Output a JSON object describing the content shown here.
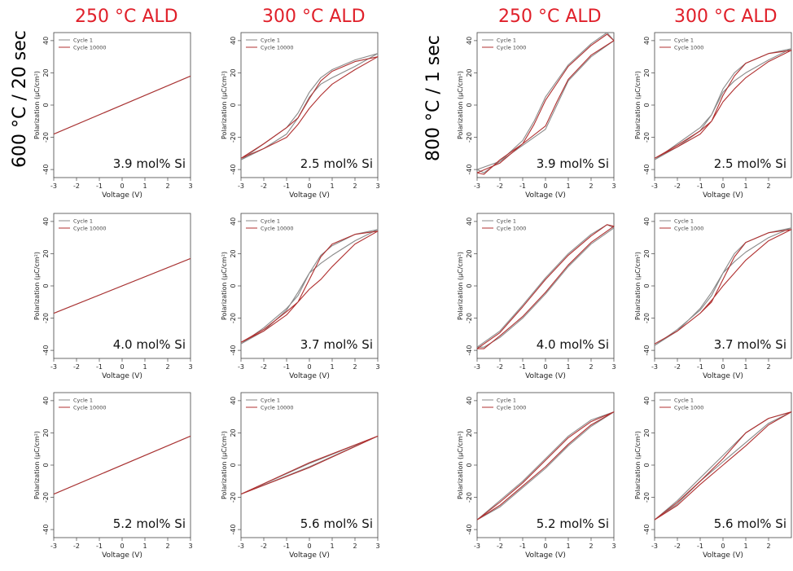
{
  "headers": {
    "left_250": "250 °C ALD",
    "left_300": "300 °C ALD",
    "right_250": "250 °C ALD",
    "right_300": "300 °C ALD",
    "row_left": "600 °C / 20 sec",
    "row_right": "800 °C / 1 sec"
  },
  "colors": {
    "header": "#e0202a",
    "cycle1": "#8a8a8a",
    "cycleN": "#b03030"
  },
  "chart_data": [
    {
      "type": "line",
      "panel": "600C-250ALD-row1",
      "annotation": "3.9 mol% Si",
      "xlabel": "Voltage (V)",
      "ylabel": "Polarization (μC/cm²)",
      "legend": [
        "Cycle 1",
        "Cycle 10000"
      ],
      "xlim": [
        -3,
        3
      ],
      "ylim": [
        -45,
        45
      ],
      "xticks": [
        -3,
        -2,
        -1,
        0,
        1,
        2,
        3
      ],
      "yticks": [
        -40,
        -20,
        0,
        20,
        40
      ],
      "series": [
        {
          "name": "Cycle 1",
          "x": [
            -3,
            3
          ],
          "y": [
            -18,
            18
          ]
        },
        {
          "name": "Cycle 10000",
          "x": [
            -3,
            3
          ],
          "y": [
            -18,
            18
          ]
        }
      ]
    },
    {
      "type": "line",
      "panel": "600C-300ALD-row1",
      "annotation": "2.5 mol% Si",
      "xlabel": "Voltage (V)",
      "ylabel": "Polarization (μC/cm²)",
      "legend": [
        "Cycle 1",
        "Cycle 10000"
      ],
      "xlim": [
        -3,
        3
      ],
      "ylim": [
        -45,
        45
      ],
      "xticks": [
        -3,
        -2,
        -1,
        0,
        1,
        2,
        3
      ],
      "yticks": [
        -40,
        -20,
        0,
        20,
        40
      ],
      "series": [
        {
          "name": "Cycle 1",
          "x": [
            -3,
            -2,
            -1,
            -0.5,
            0,
            0.5,
            1,
            2,
            3,
            2,
            1,
            0.5,
            0,
            -0.5,
            -1,
            -2,
            -3
          ],
          "y": [
            -34,
            -27,
            -18,
            -8,
            5,
            13,
            17,
            24,
            32,
            28,
            22,
            17,
            8,
            -5,
            -14,
            -24,
            -34
          ]
        },
        {
          "name": "Cycle 10000",
          "x": [
            -3,
            -2,
            -1,
            -0.5,
            0,
            0.5,
            1,
            2,
            3,
            2,
            1,
            0.5,
            0,
            -0.5,
            -1,
            -2,
            -3
          ],
          "y": [
            -33,
            -27,
            -20,
            -12,
            -2,
            6,
            13,
            22,
            30,
            27,
            21,
            15,
            4,
            -8,
            -14,
            -24,
            -33
          ]
        }
      ]
    },
    {
      "type": "line",
      "panel": "800C-250ALD-row1",
      "annotation": "3.9 mol% Si",
      "xlabel": "Voltage (V)",
      "ylabel": "Polarization (μC/cm²)",
      "legend": [
        "Cycle 1",
        "Cycle 1000"
      ],
      "xlim": [
        -3,
        3
      ],
      "ylim": [
        -45,
        45
      ],
      "xticks": [
        -3,
        -2,
        -1,
        0,
        1,
        2,
        3
      ],
      "yticks": [
        -40,
        -20,
        0,
        20,
        40
      ],
      "series": [
        {
          "name": "Cycle 1",
          "x": [
            -3,
            -2,
            -1,
            -0.5,
            0,
            1,
            2,
            2.7,
            3,
            2,
            1,
            0.5,
            0,
            -1,
            -2,
            -2.7,
            -3
          ],
          "y": [
            -40,
            -35,
            -22,
            -10,
            5,
            25,
            38,
            45,
            40,
            30,
            15,
            0,
            -15,
            -25,
            -35,
            -42,
            -40
          ]
        },
        {
          "name": "Cycle 1000",
          "x": [
            -3,
            -2,
            -1,
            -0.5,
            0,
            1,
            2,
            2.7,
            3,
            2,
            1,
            0.5,
            0,
            -1,
            -2,
            -2.7,
            -3
          ],
          "y": [
            -42,
            -36,
            -24,
            -12,
            3,
            24,
            37,
            44,
            40,
            31,
            16,
            2,
            -13,
            -24,
            -34,
            -43,
            -42
          ]
        }
      ]
    },
    {
      "type": "line",
      "panel": "800C-300ALD-row1",
      "annotation": "2.5 mol% Si",
      "xlabel": "Voltage (V)",
      "ylabel": "Polarization (μC/cm²)",
      "legend": [
        "Cycle 1",
        "Cycle 1000"
      ],
      "xlim": [
        -3,
        3
      ],
      "ylim": [
        -45,
        45
      ],
      "xticks": [
        -3,
        -2,
        -1,
        0,
        1,
        2
      ],
      "yticks": [
        -40,
        -20,
        0,
        20,
        40
      ],
      "series": [
        {
          "name": "Cycle 1",
          "x": [
            -3,
            -2,
            -1,
            -0.5,
            0,
            0.5,
            1,
            2,
            3,
            2,
            1,
            0.5,
            0,
            -0.5,
            -1,
            -2,
            -3
          ],
          "y": [
            -34,
            -26,
            -16,
            -6,
            8,
            15,
            20,
            28,
            35,
            32,
            26,
            20,
            10,
            -6,
            -14,
            -24,
            -34
          ]
        },
        {
          "name": "Cycle 1000",
          "x": [
            -3,
            -2,
            -1,
            -0.5,
            0,
            0.5,
            1,
            2,
            3,
            2,
            1,
            0.5,
            0,
            -0.5,
            -1,
            -2,
            -3
          ],
          "y": [
            -33,
            -26,
            -18,
            -10,
            2,
            10,
            17,
            27,
            34,
            32,
            26,
            18,
            6,
            -10,
            -16,
            -25,
            -33
          ]
        }
      ]
    },
    {
      "type": "line",
      "panel": "600C-250ALD-row2",
      "annotation": "4.0 mol% Si",
      "xlabel": "Voltage (V)",
      "ylabel": "Polarization (μC/cm²)",
      "legend": [
        "Cycle 1",
        "Cycle 10000"
      ],
      "xlim": [
        -3,
        3
      ],
      "ylim": [
        -45,
        45
      ],
      "xticks": [
        -3,
        -2,
        -1,
        0,
        1,
        2,
        3
      ],
      "yticks": [
        -40,
        -20,
        0,
        20,
        40
      ],
      "series": [
        {
          "name": "Cycle 1",
          "x": [
            -3,
            3
          ],
          "y": [
            -17,
            17
          ]
        },
        {
          "name": "Cycle 10000",
          "x": [
            -3,
            3
          ],
          "y": [
            -17,
            17
          ]
        }
      ]
    },
    {
      "type": "line",
      "panel": "600C-300ALD-row2",
      "annotation": "3.7 mol% Si",
      "xlabel": "Voltage (V)",
      "ylabel": "Polarization (μC/cm²)",
      "legend": [
        "Cycle 1",
        "Cycle 10000"
      ],
      "xlim": [
        -3,
        3
      ],
      "ylim": [
        -45,
        45
      ],
      "xticks": [
        -3,
        -2,
        -1,
        0,
        1,
        2,
        3
      ],
      "yticks": [
        -40,
        -20,
        0,
        20,
        40
      ],
      "series": [
        {
          "name": "Cycle 1",
          "x": [
            -3,
            -2,
            -1,
            -0.5,
            0,
            0.5,
            1,
            2,
            3,
            2,
            1,
            0.5,
            0,
            -0.5,
            -1,
            -2,
            -3
          ],
          "y": [
            -36,
            -28,
            -15,
            -4,
            8,
            14,
            19,
            28,
            35,
            32,
            25,
            19,
            8,
            -6,
            -14,
            -26,
            -36
          ]
        },
        {
          "name": "Cycle 10000",
          "x": [
            -3,
            -2,
            -1,
            -0.5,
            0,
            0.5,
            1,
            2,
            3,
            2,
            1,
            0.5,
            0,
            -0.5,
            -1,
            -2,
            -3
          ],
          "y": [
            -35,
            -28,
            -18,
            -10,
            -2,
            4,
            12,
            26,
            34,
            32,
            26,
            18,
            4,
            -10,
            -16,
            -27,
            -35
          ]
        }
      ]
    },
    {
      "type": "line",
      "panel": "800C-250ALD-row2",
      "annotation": "4.0 mol% Si",
      "xlabel": "Voltage (V)",
      "ylabel": "Polarization (μC/cm²)",
      "legend": [
        "Cycle 1",
        "Cycle 1000"
      ],
      "xlim": [
        -3,
        3
      ],
      "ylim": [
        -45,
        45
      ],
      "xticks": [
        -3,
        -2,
        -1,
        0,
        1,
        2,
        3
      ],
      "yticks": [
        -40,
        -20,
        0,
        20,
        40
      ],
      "series": [
        {
          "name": "Cycle 1",
          "x": [
            -3,
            -2,
            -1,
            0,
            1,
            2,
            2.7,
            3,
            2,
            1,
            0,
            -1,
            -2,
            -2.7,
            -3
          ],
          "y": [
            -38,
            -28,
            -12,
            5,
            20,
            32,
            38,
            36,
            26,
            12,
            -5,
            -20,
            -32,
            -38,
            -38
          ]
        },
        {
          "name": "Cycle 1000",
          "x": [
            -3,
            -2,
            -1,
            0,
            1,
            2,
            2.7,
            3,
            2,
            1,
            0,
            -1,
            -2,
            -2.7,
            -3
          ],
          "y": [
            -39,
            -29,
            -13,
            4,
            19,
            31,
            38,
            37,
            27,
            13,
            -4,
            -19,
            -31,
            -39,
            -39
          ]
        }
      ]
    },
    {
      "type": "line",
      "panel": "800C-300ALD-row2",
      "annotation": "3.7 mol% Si",
      "xlabel": "Voltage (V)",
      "ylabel": "Polarization (μC/cm²)",
      "legend": [
        "Cycle 1",
        "Cycle 1000"
      ],
      "xlim": [
        -3,
        3
      ],
      "ylim": [
        -45,
        45
      ],
      "xticks": [
        -3,
        -2,
        -1,
        0,
        1,
        2
      ],
      "yticks": [
        -40,
        -20,
        0,
        20,
        40
      ],
      "series": [
        {
          "name": "Cycle 1",
          "x": [
            -3,
            -2,
            -1,
            -0.5,
            0,
            0.5,
            1,
            2,
            3,
            2,
            1,
            0.5,
            0,
            -0.5,
            -1,
            -2,
            -3
          ],
          "y": [
            -37,
            -28,
            -14,
            -4,
            8,
            15,
            21,
            30,
            36,
            33,
            27,
            20,
            8,
            -6,
            -15,
            -27,
            -37
          ]
        },
        {
          "name": "Cycle 1000",
          "x": [
            -3,
            -2,
            -1,
            -0.5,
            0,
            0.5,
            1,
            2,
            3,
            2,
            1,
            0.5,
            0,
            -0.5,
            -1,
            -2,
            -3
          ],
          "y": [
            -36,
            -28,
            -17,
            -9,
            0,
            8,
            16,
            28,
            35,
            33,
            27,
            18,
            4,
            -10,
            -17,
            -28,
            -36
          ]
        }
      ]
    },
    {
      "type": "line",
      "panel": "600C-250ALD-row3",
      "annotation": "5.2 mol% Si",
      "xlabel": "Voltage (V)",
      "ylabel": "Polarization (μC/cm²)",
      "legend": [
        "Cycle 1",
        "Cycle 10000"
      ],
      "xlim": [
        -3,
        3
      ],
      "ylim": [
        -45,
        45
      ],
      "xticks": [
        -3,
        -2,
        -1,
        0,
        1,
        2,
        3
      ],
      "yticks": [
        -40,
        -20,
        0,
        20,
        40
      ],
      "series": [
        {
          "name": "Cycle 1",
          "x": [
            -3,
            3
          ],
          "y": [
            -18,
            18
          ]
        },
        {
          "name": "Cycle 10000",
          "x": [
            -3,
            3
          ],
          "y": [
            -18,
            18
          ]
        }
      ]
    },
    {
      "type": "line",
      "panel": "600C-300ALD-row3",
      "annotation": "5.6 mol% Si",
      "xlabel": "Voltage (V)",
      "ylabel": "Polarization (μC/cm²)",
      "legend": [
        "Cycle 1",
        "Cycle 10000"
      ],
      "xlim": [
        -3,
        3
      ],
      "ylim": [
        -45,
        45
      ],
      "xticks": [
        -3,
        -2,
        -1,
        0,
        1,
        2,
        3
      ],
      "yticks": [
        -40,
        -20,
        0,
        20,
        40
      ],
      "series": [
        {
          "name": "Cycle 1",
          "x": [
            -3,
            0,
            3,
            0,
            -3
          ],
          "y": [
            -18,
            -1,
            18,
            1,
            -18
          ]
        },
        {
          "name": "Cycle 10000",
          "x": [
            -3,
            0,
            3,
            0,
            -3
          ],
          "y": [
            -18,
            -1.5,
            18,
            1.5,
            -18
          ]
        }
      ]
    },
    {
      "type": "line",
      "panel": "800C-250ALD-row3",
      "annotation": "5.2 mol% Si",
      "xlabel": "Voltage (V)",
      "ylabel": "Polarization (μC/cm²)",
      "legend": [
        "Cycle 1",
        "Cycle 1000"
      ],
      "xlim": [
        -3,
        3
      ],
      "ylim": [
        -45,
        45
      ],
      "xticks": [
        -3,
        -2,
        -1,
        0,
        1,
        2,
        3
      ],
      "yticks": [
        -40,
        -20,
        0,
        20,
        40
      ],
      "series": [
        {
          "name": "Cycle 1",
          "x": [
            -3,
            -2,
            -1,
            0,
            1,
            2,
            3,
            2,
            1,
            0,
            -1,
            -2,
            -3
          ],
          "y": [
            -34,
            -26,
            -14,
            -2,
            12,
            24,
            33,
            28,
            18,
            4,
            -10,
            -22,
            -34
          ]
        },
        {
          "name": "Cycle 1000",
          "x": [
            -3,
            -2,
            -1,
            0,
            1,
            2,
            3,
            2,
            1,
            0,
            -1,
            -2,
            -3
          ],
          "y": [
            -34,
            -25,
            -13,
            -1,
            13,
            25,
            33,
            27,
            17,
            3,
            -11,
            -23,
            -34
          ]
        }
      ]
    },
    {
      "type": "line",
      "panel": "800C-300ALD-row3",
      "annotation": "5.6 mol% Si",
      "xlabel": "Voltage (V)",
      "ylabel": "Polarization (μC/cm²)",
      "legend": [
        "Cycle 1",
        "Cycle 1000"
      ],
      "xlim": [
        -3,
        3
      ],
      "ylim": [
        -45,
        45
      ],
      "xticks": [
        -3,
        -2,
        -1,
        0,
        1,
        2
      ],
      "yticks": [
        -40,
        -20,
        0,
        20,
        40
      ],
      "series": [
        {
          "name": "Cycle 1",
          "x": [
            -3,
            -2,
            -1,
            0,
            1,
            2,
            3,
            2,
            1,
            0,
            -1,
            -2,
            -3
          ],
          "y": [
            -34,
            -24,
            -10,
            2,
            14,
            26,
            33,
            29,
            20,
            6,
            -8,
            -22,
            -34
          ]
        },
        {
          "name": "Cycle 1000",
          "x": [
            -3,
            -2,
            -1,
            0,
            1,
            2,
            3,
            2,
            1,
            0,
            -1,
            -2,
            -3
          ],
          "y": [
            -34,
            -25,
            -12,
            0,
            12,
            25,
            33,
            29,
            20,
            4,
            -10,
            -23,
            -34
          ]
        }
      ]
    }
  ]
}
